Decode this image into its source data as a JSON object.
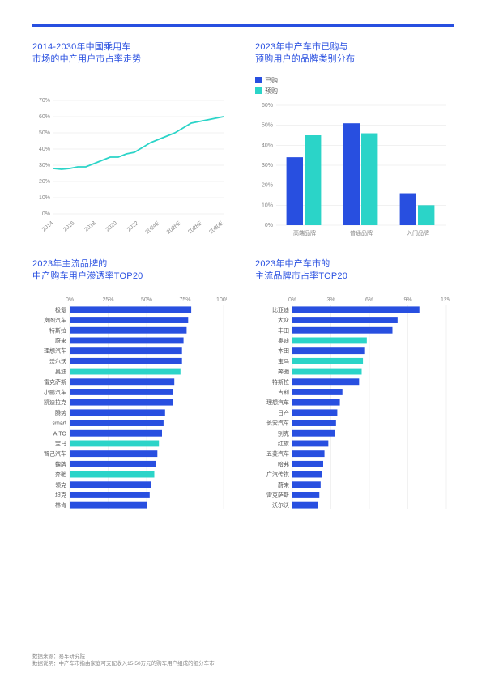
{
  "colors": {
    "primary": "#284fe0",
    "accent": "#2bd4c8",
    "grid": "#d6d6d6",
    "text": "#555",
    "axis": "#888"
  },
  "line_chart": {
    "title": "2014-2030年中国乘用车\n市场的中产用户市占率走势",
    "type": "line",
    "x_labels": [
      "2014",
      "2016",
      "2018",
      "2020",
      "2022",
      "2024E",
      "2026E",
      "2028E",
      "2030E"
    ],
    "y_ticks": [
      0,
      10,
      20,
      30,
      40,
      50,
      60,
      70
    ],
    "y_suffix": "%",
    "ylim": [
      0,
      70
    ],
    "points": [
      28,
      27.5,
      28,
      29,
      29,
      31,
      33,
      35,
      35,
      37,
      38,
      41,
      44,
      46,
      48,
      50,
      53,
      56,
      57,
      58,
      59,
      60
    ],
    "line_color": "#2bd4c8",
    "line_width": 1.8,
    "grid_color": "#e3e3e3",
    "label_fontsize": 7,
    "x_label_rotate": -40
  },
  "bar_chart": {
    "title": "2023年中产车市已购与\n预购用户的品牌类别分布",
    "type": "grouped-bar",
    "categories": [
      "高端品牌",
      "普通品牌",
      "入门品牌"
    ],
    "legend": [
      {
        "label": "已购",
        "color": "#284fe0"
      },
      {
        "label": "预购",
        "color": "#2bd4c8"
      }
    ],
    "y_ticks": [
      0,
      10,
      20,
      30,
      40,
      50,
      60
    ],
    "y_suffix": "%",
    "ylim": [
      0,
      60
    ],
    "series": [
      {
        "name": "已购",
        "color": "#284fe0",
        "values": [
          34,
          51,
          16
        ]
      },
      {
        "name": "预购",
        "color": "#2bd4c8",
        "values": [
          45,
          46,
          10
        ]
      }
    ],
    "bar_width": 0.32,
    "grid_color": "#e3e3e3",
    "label_fontsize": 7
  },
  "hbar_left": {
    "title": "2023年主流品牌的\n中产购车用户渗透率TOP20",
    "type": "horizontal-bar",
    "x_ticks": [
      0,
      25,
      50,
      75,
      100
    ],
    "x_suffix": "%",
    "xlim": [
      0,
      100
    ],
    "highlight_color": "#2bd4c8",
    "bar_color": "#284fe0",
    "bar_height": 0.62,
    "label_fontsize": 7,
    "items": [
      {
        "name": "极氪",
        "value": 79,
        "hl": false
      },
      {
        "name": "岚图汽车",
        "value": 77,
        "hl": false
      },
      {
        "name": "特斯拉",
        "value": 76,
        "hl": false
      },
      {
        "name": "蔚来",
        "value": 74,
        "hl": false
      },
      {
        "name": "理想汽车",
        "value": 73,
        "hl": false
      },
      {
        "name": "沃尔沃",
        "value": 73,
        "hl": false
      },
      {
        "name": "奥迪",
        "value": 72,
        "hl": true
      },
      {
        "name": "雷克萨斯",
        "value": 68,
        "hl": false
      },
      {
        "name": "小鹏汽车",
        "value": 67,
        "hl": false
      },
      {
        "name": "凯迪拉克",
        "value": 67,
        "hl": false
      },
      {
        "name": "腾势",
        "value": 62,
        "hl": false
      },
      {
        "name": "smart",
        "value": 61,
        "hl": false
      },
      {
        "name": "AITO",
        "value": 60,
        "hl": false
      },
      {
        "name": "宝马",
        "value": 58,
        "hl": true
      },
      {
        "name": "智己汽车",
        "value": 57,
        "hl": false
      },
      {
        "name": "魏牌",
        "value": 56,
        "hl": false
      },
      {
        "name": "奔驰",
        "value": 55,
        "hl": true
      },
      {
        "name": "领克",
        "value": 53,
        "hl": false
      },
      {
        "name": "坦克",
        "value": 52,
        "hl": false
      },
      {
        "name": "林肯",
        "value": 50,
        "hl": false
      }
    ]
  },
  "hbar_right": {
    "title": "2023年中产车市的\n主流品牌市占率TOP20",
    "type": "horizontal-bar",
    "x_ticks": [
      0,
      3,
      6,
      9,
      12
    ],
    "x_suffix": "%",
    "xlim": [
      0,
      12
    ],
    "highlight_color": "#2bd4c8",
    "bar_color": "#284fe0",
    "bar_height": 0.62,
    "label_fontsize": 7,
    "items": [
      {
        "name": "比亚迪",
        "value": 9.9,
        "hl": false
      },
      {
        "name": "大众",
        "value": 8.2,
        "hl": false
      },
      {
        "name": "丰田",
        "value": 7.8,
        "hl": false
      },
      {
        "name": "奥迪",
        "value": 5.8,
        "hl": true
      },
      {
        "name": "本田",
        "value": 5.6,
        "hl": false
      },
      {
        "name": "宝马",
        "value": 5.5,
        "hl": true
      },
      {
        "name": "奔驰",
        "value": 5.4,
        "hl": true
      },
      {
        "name": "特斯拉",
        "value": 5.2,
        "hl": false
      },
      {
        "name": "吉利",
        "value": 3.9,
        "hl": false
      },
      {
        "name": "理想汽车",
        "value": 3.7,
        "hl": false
      },
      {
        "name": "日产",
        "value": 3.5,
        "hl": false
      },
      {
        "name": "长安汽车",
        "value": 3.4,
        "hl": false
      },
      {
        "name": "别克",
        "value": 3.3,
        "hl": false
      },
      {
        "name": "红旗",
        "value": 2.8,
        "hl": false
      },
      {
        "name": "五菱汽车",
        "value": 2.5,
        "hl": false
      },
      {
        "name": "哈弗",
        "value": 2.4,
        "hl": false
      },
      {
        "name": "广汽传祺",
        "value": 2.3,
        "hl": false
      },
      {
        "name": "蔚来",
        "value": 2.2,
        "hl": false
      },
      {
        "name": "雷克萨斯",
        "value": 2.1,
        "hl": false
      },
      {
        "name": "沃尔沃",
        "value": 2.0,
        "hl": false
      }
    ]
  },
  "footer": {
    "l1": "数据来源：易车研究院",
    "l2": "数据说明：中产车市指由家庭可支配收入15-50万元的购车用户组成的细分车市"
  }
}
